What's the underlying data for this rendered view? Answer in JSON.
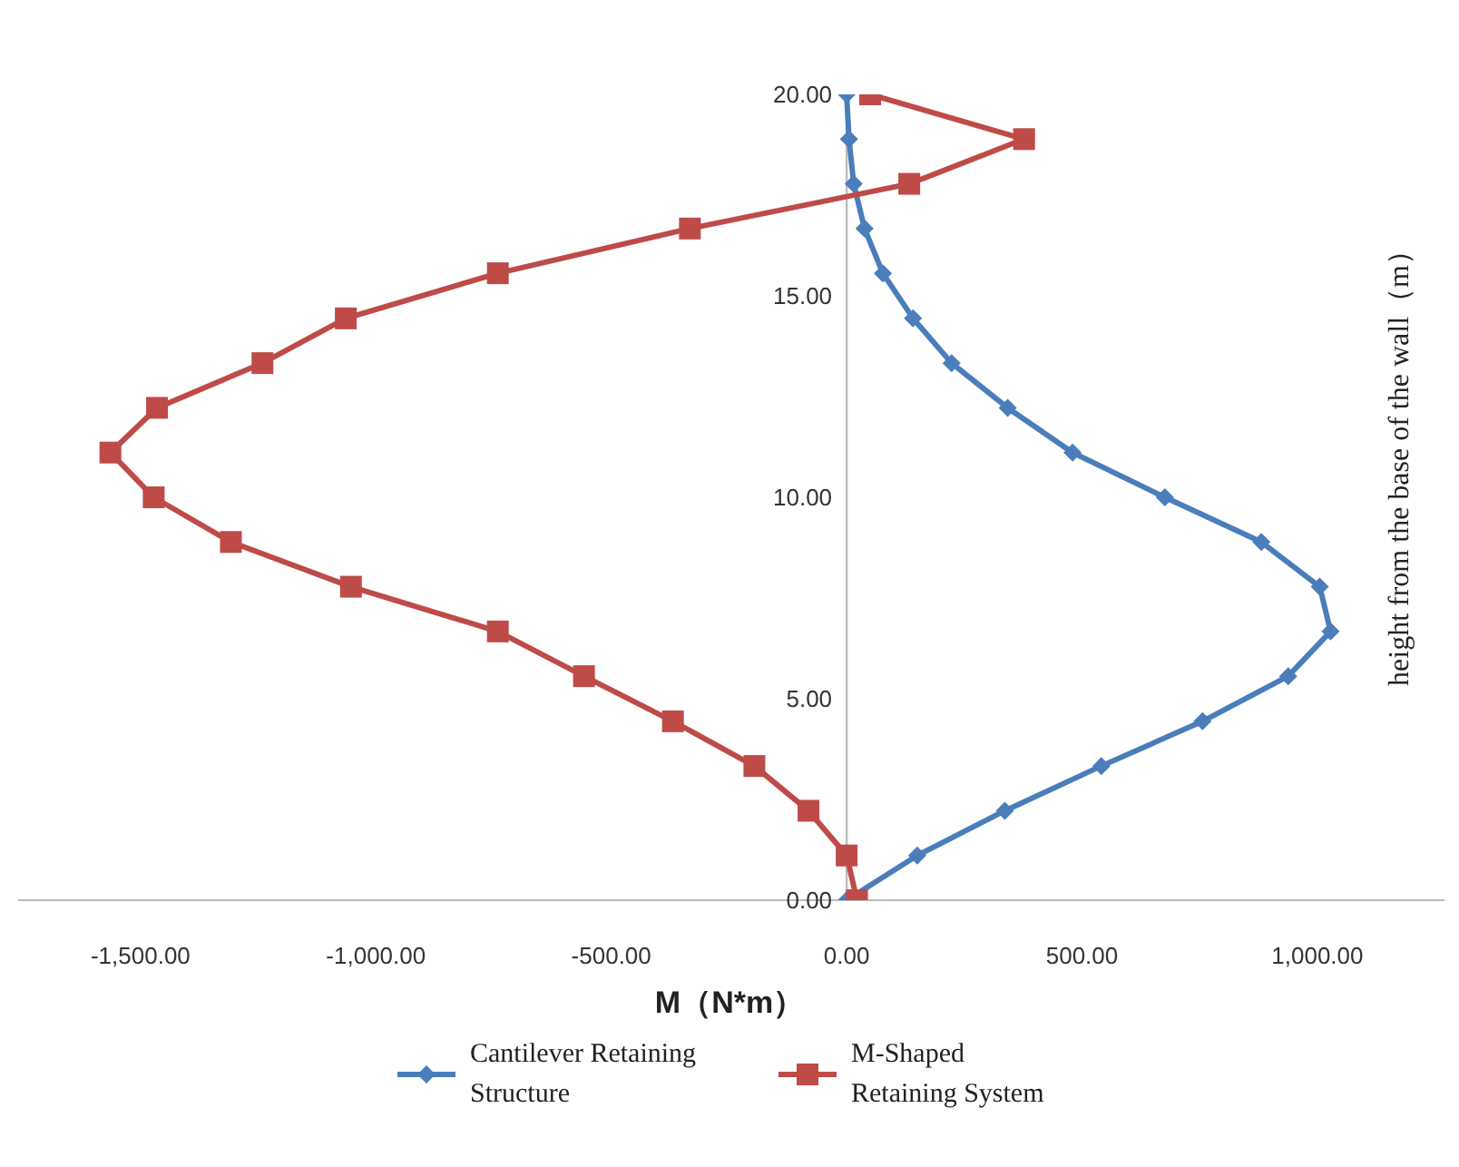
{
  "chart_data": {
    "type": "line",
    "xlabel": "M（N*m）",
    "ylabel": "height from the base of the wall（m）",
    "xlim": [
      -1760,
      1270
    ],
    "xticks": [
      {
        "value": -1500,
        "label": "-1,500.00"
      },
      {
        "value": -1000,
        "label": "-1,000.00"
      },
      {
        "value": -500,
        "label": "-500.00"
      },
      {
        "value": 0,
        "label": "0.00"
      },
      {
        "value": 500,
        "label": "500.00"
      },
      {
        "value": 1000,
        "label": "1,000.00"
      }
    ],
    "ylim": [
      0,
      20
    ],
    "yticks": [
      {
        "value": 0,
        "label": "0.00"
      },
      {
        "value": 5,
        "label": "5.00"
      },
      {
        "value": 10,
        "label": "10.00"
      },
      {
        "value": 15,
        "label": "15.00"
      },
      {
        "value": 20,
        "label": "20.00"
      }
    ],
    "legend": "bottom",
    "line_style": "solid",
    "series": [
      {
        "name": "Cantilever Retaining Structure",
        "color": "#4a7ebb",
        "marker": "diamond",
        "x": [
          0,
          150,
          336,
          541,
          756,
          938,
          1028,
          1005,
          881,
          676,
          480,
          342,
          223,
          141,
          77,
          38,
          15,
          5,
          0
        ],
        "values": [
          0,
          1.11,
          2.22,
          3.33,
          4.44,
          5.56,
          6.67,
          7.78,
          8.89,
          10,
          11.11,
          12.22,
          13.33,
          14.44,
          15.56,
          16.67,
          17.78,
          18.89,
          20
        ]
      },
      {
        "name": "M-Shaped Retaining System",
        "color": "#be4b48",
        "marker": "square",
        "x": [
          22,
          0,
          -81,
          -196,
          -369,
          -558,
          -741,
          -1053,
          -1308,
          -1472,
          -1564,
          -1465,
          -1241,
          -1064,
          -741,
          -333,
          133,
          377,
          50
        ],
        "values": [
          0,
          1.11,
          2.22,
          3.33,
          4.44,
          5.56,
          6.67,
          7.78,
          8.89,
          10,
          11.11,
          12.22,
          13.33,
          14.44,
          15.56,
          16.67,
          17.78,
          18.89,
          20
        ]
      }
    ]
  }
}
